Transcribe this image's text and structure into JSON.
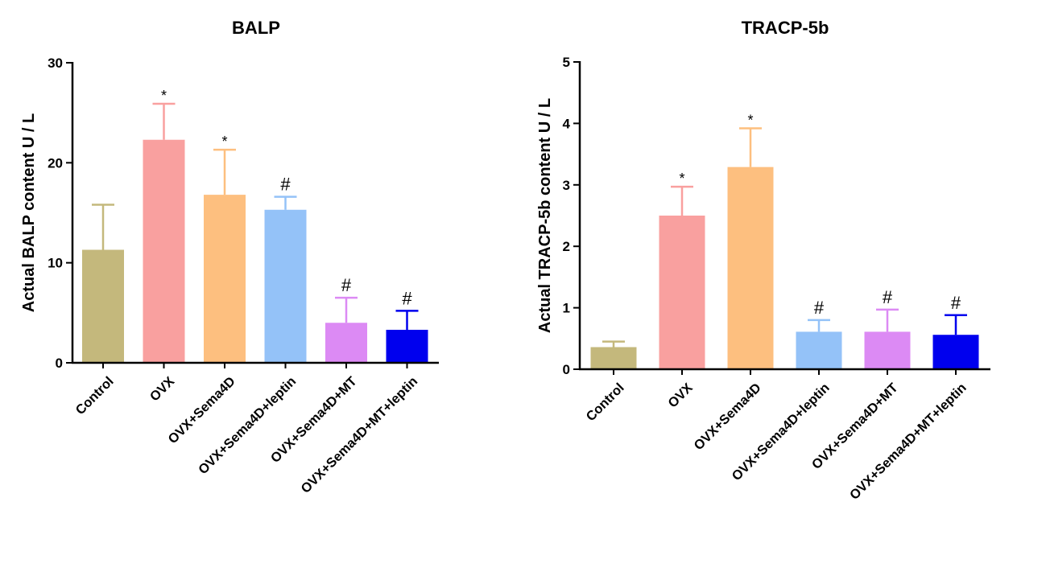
{
  "chart_data": [
    {
      "type": "bar",
      "title": "BALP",
      "ylabel": "Actual BALP content U / L",
      "xlabel": "",
      "ylim": [
        0,
        30
      ],
      "yticks": [
        0,
        10,
        20,
        30
      ],
      "categories": [
        "Control",
        "OVX",
        "OVX+Sema4D",
        "OVX+Sema4D+leptin",
        "OVX+Sema4D+MT",
        "OVX+Sema4D+MT+leptin"
      ],
      "values": [
        11.3,
        22.3,
        16.8,
        15.3,
        4.0,
        3.3
      ],
      "errors": [
        4.5,
        3.6,
        4.5,
        1.3,
        2.5,
        1.9
      ],
      "annotations": [
        "",
        "*",
        "*",
        "#",
        "#",
        "#"
      ],
      "colors": [
        "#c4b87c",
        "#f9a09f",
        "#fdbf7f",
        "#94c2f8",
        "#dc8af4",
        "#0000ee"
      ]
    },
    {
      "type": "bar",
      "title": "TRACP-5b",
      "ylabel": "Actual TRACP-5b content U / L",
      "xlabel": "",
      "ylim": [
        0,
        5
      ],
      "yticks": [
        0,
        1,
        2,
        3,
        4,
        5
      ],
      "categories": [
        "Control",
        "OVX",
        "OVX+Sema4D",
        "OVX+Sema4D+leptin",
        "OVX+Sema4D+MT",
        "OVX+Sema4D+MT+leptin"
      ],
      "values": [
        0.36,
        2.5,
        3.29,
        0.61,
        0.61,
        0.56
      ],
      "errors": [
        0.09,
        0.47,
        0.63,
        0.19,
        0.36,
        0.32
      ],
      "annotations": [
        "",
        "*",
        "*",
        "#",
        "#",
        "#"
      ],
      "colors": [
        "#c4b87c",
        "#f9a09f",
        "#fdbf7f",
        "#94c2f8",
        "#dc8af4",
        "#0000ee"
      ]
    }
  ]
}
